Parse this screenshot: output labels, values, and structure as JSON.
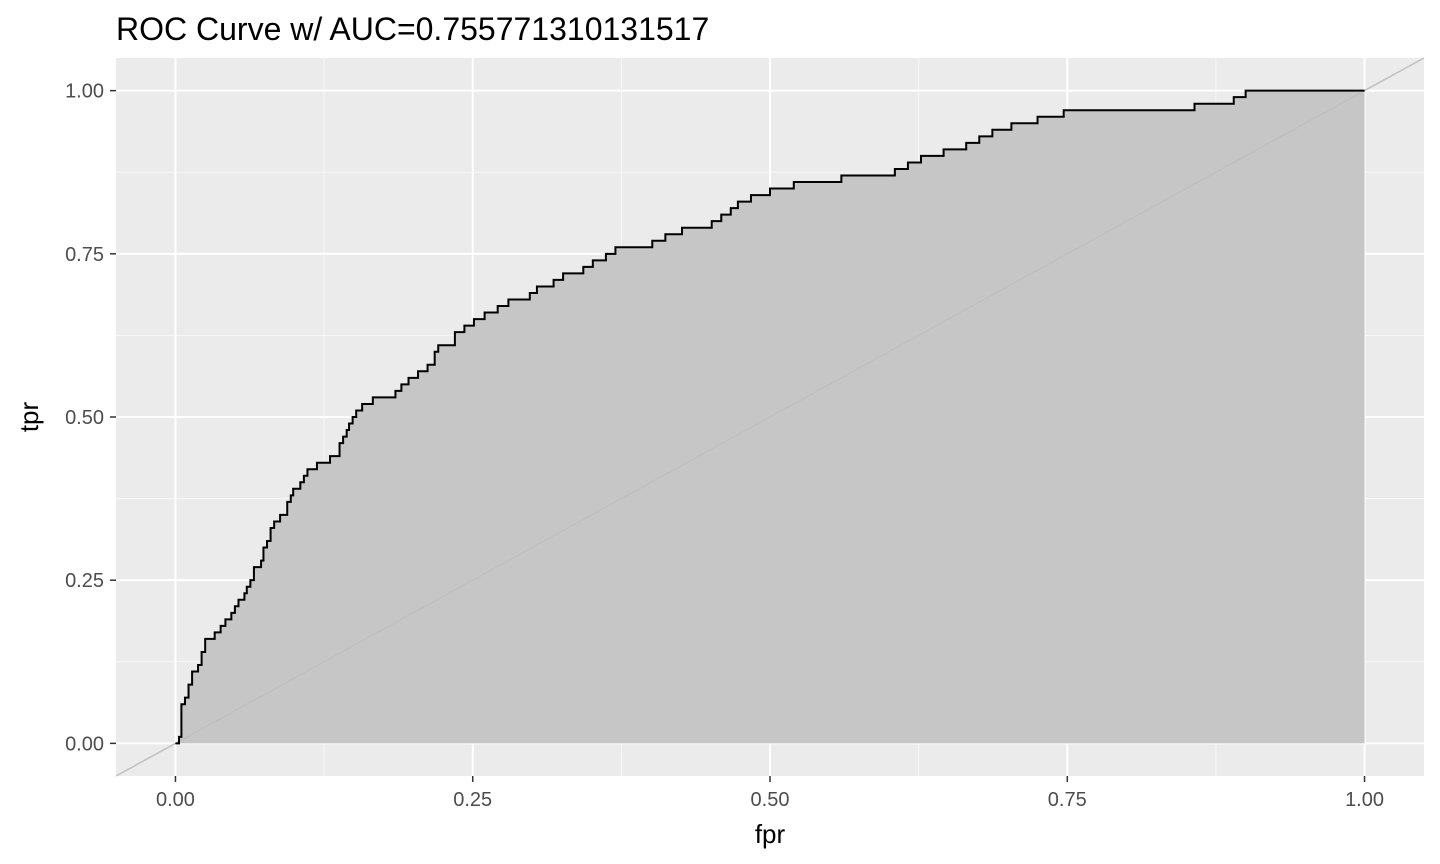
{
  "chart_data": {
    "type": "area",
    "title": "ROC Curve w/ AUC=0.755771310131517",
    "xlabel": "fpr",
    "ylabel": "tpr",
    "xlim": [
      -0.05,
      1.05
    ],
    "ylim": [
      -0.05,
      1.05
    ],
    "x_ticks": [
      0.0,
      0.25,
      0.5,
      0.75,
      1.0
    ],
    "y_ticks": [
      0.0,
      0.25,
      0.5,
      0.75,
      1.0
    ],
    "x_tick_labels": [
      "0.00",
      "0.25",
      "0.50",
      "0.75",
      "1.00"
    ],
    "y_tick_labels": [
      "0.00",
      "0.25",
      "0.50",
      "0.75",
      "1.00"
    ],
    "grid": true,
    "legend": "none",
    "colors": {
      "panel": "#ebebeb",
      "grid_major": "#ffffff",
      "fill": "#c6c6c6",
      "curve": "#000000",
      "diagonal": "#c0c0c0"
    },
    "series": [
      {
        "points": [
          [
            0.0,
            0.0
          ],
          [
            0.003,
            0.0
          ],
          [
            0.003,
            0.01
          ],
          [
            0.005,
            0.01
          ],
          [
            0.005,
            0.06
          ],
          [
            0.008,
            0.06
          ],
          [
            0.008,
            0.07
          ],
          [
            0.011,
            0.07
          ],
          [
            0.011,
            0.09
          ],
          [
            0.014,
            0.09
          ],
          [
            0.014,
            0.11
          ],
          [
            0.019,
            0.11
          ],
          [
            0.019,
            0.12
          ],
          [
            0.022,
            0.12
          ],
          [
            0.022,
            0.14
          ],
          [
            0.025,
            0.14
          ],
          [
            0.025,
            0.16
          ],
          [
            0.033,
            0.16
          ],
          [
            0.033,
            0.17
          ],
          [
            0.038,
            0.17
          ],
          [
            0.038,
            0.18
          ],
          [
            0.042,
            0.18
          ],
          [
            0.042,
            0.19
          ],
          [
            0.047,
            0.19
          ],
          [
            0.047,
            0.2
          ],
          [
            0.05,
            0.2
          ],
          [
            0.05,
            0.21
          ],
          [
            0.053,
            0.21
          ],
          [
            0.053,
            0.22
          ],
          [
            0.058,
            0.22
          ],
          [
            0.058,
            0.23
          ],
          [
            0.06,
            0.23
          ],
          [
            0.06,
            0.24
          ],
          [
            0.063,
            0.24
          ],
          [
            0.063,
            0.25
          ],
          [
            0.066,
            0.25
          ],
          [
            0.066,
            0.27
          ],
          [
            0.072,
            0.27
          ],
          [
            0.072,
            0.28
          ],
          [
            0.074,
            0.28
          ],
          [
            0.074,
            0.3
          ],
          [
            0.077,
            0.3
          ],
          [
            0.077,
            0.31
          ],
          [
            0.08,
            0.31
          ],
          [
            0.08,
            0.33
          ],
          [
            0.083,
            0.33
          ],
          [
            0.083,
            0.34
          ],
          [
            0.088,
            0.34
          ],
          [
            0.088,
            0.35
          ],
          [
            0.094,
            0.35
          ],
          [
            0.094,
            0.37
          ],
          [
            0.097,
            0.37
          ],
          [
            0.097,
            0.38
          ],
          [
            0.099,
            0.38
          ],
          [
            0.099,
            0.39
          ],
          [
            0.105,
            0.39
          ],
          [
            0.105,
            0.4
          ],
          [
            0.108,
            0.4
          ],
          [
            0.108,
            0.41
          ],
          [
            0.111,
            0.41
          ],
          [
            0.111,
            0.42
          ],
          [
            0.119,
            0.42
          ],
          [
            0.119,
            0.43
          ],
          [
            0.13,
            0.43
          ],
          [
            0.13,
            0.44
          ],
          [
            0.138,
            0.44
          ],
          [
            0.138,
            0.46
          ],
          [
            0.141,
            0.46
          ],
          [
            0.141,
            0.47
          ],
          [
            0.144,
            0.47
          ],
          [
            0.144,
            0.48
          ],
          [
            0.146,
            0.48
          ],
          [
            0.146,
            0.49
          ],
          [
            0.149,
            0.49
          ],
          [
            0.149,
            0.5
          ],
          [
            0.152,
            0.5
          ],
          [
            0.152,
            0.51
          ],
          [
            0.157,
            0.51
          ],
          [
            0.157,
            0.52
          ],
          [
            0.166,
            0.52
          ],
          [
            0.166,
            0.53
          ],
          [
            0.185,
            0.53
          ],
          [
            0.185,
            0.54
          ],
          [
            0.19,
            0.54
          ],
          [
            0.19,
            0.55
          ],
          [
            0.196,
            0.55
          ],
          [
            0.196,
            0.56
          ],
          [
            0.204,
            0.56
          ],
          [
            0.204,
            0.57
          ],
          [
            0.212,
            0.57
          ],
          [
            0.212,
            0.58
          ],
          [
            0.218,
            0.58
          ],
          [
            0.218,
            0.6
          ],
          [
            0.221,
            0.6
          ],
          [
            0.221,
            0.61
          ],
          [
            0.235,
            0.61
          ],
          [
            0.235,
            0.63
          ],
          [
            0.243,
            0.63
          ],
          [
            0.243,
            0.64
          ],
          [
            0.251,
            0.64
          ],
          [
            0.251,
            0.65
          ],
          [
            0.26,
            0.65
          ],
          [
            0.26,
            0.66
          ],
          [
            0.271,
            0.66
          ],
          [
            0.271,
            0.67
          ],
          [
            0.28,
            0.67
          ],
          [
            0.28,
            0.68
          ],
          [
            0.298,
            0.68
          ],
          [
            0.298,
            0.69
          ],
          [
            0.304,
            0.69
          ],
          [
            0.304,
            0.7
          ],
          [
            0.318,
            0.7
          ],
          [
            0.318,
            0.71
          ],
          [
            0.326,
            0.71
          ],
          [
            0.326,
            0.72
          ],
          [
            0.343,
            0.72
          ],
          [
            0.343,
            0.73
          ],
          [
            0.351,
            0.73
          ],
          [
            0.351,
            0.74
          ],
          [
            0.362,
            0.74
          ],
          [
            0.362,
            0.75
          ],
          [
            0.37,
            0.75
          ],
          [
            0.37,
            0.76
          ],
          [
            0.401,
            0.76
          ],
          [
            0.401,
            0.77
          ],
          [
            0.412,
            0.77
          ],
          [
            0.412,
            0.78
          ],
          [
            0.426,
            0.78
          ],
          [
            0.426,
            0.79
          ],
          [
            0.451,
            0.79
          ],
          [
            0.451,
            0.8
          ],
          [
            0.459,
            0.8
          ],
          [
            0.459,
            0.81
          ],
          [
            0.467,
            0.81
          ],
          [
            0.467,
            0.82
          ],
          [
            0.473,
            0.82
          ],
          [
            0.473,
            0.83
          ],
          [
            0.484,
            0.83
          ],
          [
            0.484,
            0.84
          ],
          [
            0.5,
            0.84
          ],
          [
            0.5,
            0.85
          ],
          [
            0.52,
            0.85
          ],
          [
            0.52,
            0.86
          ],
          [
            0.56,
            0.86
          ],
          [
            0.56,
            0.87
          ],
          [
            0.605,
            0.87
          ],
          [
            0.605,
            0.88
          ],
          [
            0.616,
            0.88
          ],
          [
            0.616,
            0.89
          ],
          [
            0.627,
            0.89
          ],
          [
            0.627,
            0.9
          ],
          [
            0.646,
            0.9
          ],
          [
            0.646,
            0.91
          ],
          [
            0.665,
            0.91
          ],
          [
            0.665,
            0.92
          ],
          [
            0.676,
            0.92
          ],
          [
            0.676,
            0.93
          ],
          [
            0.687,
            0.93
          ],
          [
            0.687,
            0.94
          ],
          [
            0.703,
            0.94
          ],
          [
            0.703,
            0.95
          ],
          [
            0.725,
            0.95
          ],
          [
            0.725,
            0.96
          ],
          [
            0.747,
            0.96
          ],
          [
            0.747,
            0.97
          ],
          [
            0.857,
            0.97
          ],
          [
            0.857,
            0.98
          ],
          [
            0.89,
            0.98
          ],
          [
            0.89,
            0.99
          ],
          [
            0.9,
            0.99
          ],
          [
            0.9,
            1.0
          ],
          [
            1.0,
            1.0
          ]
        ]
      }
    ]
  }
}
